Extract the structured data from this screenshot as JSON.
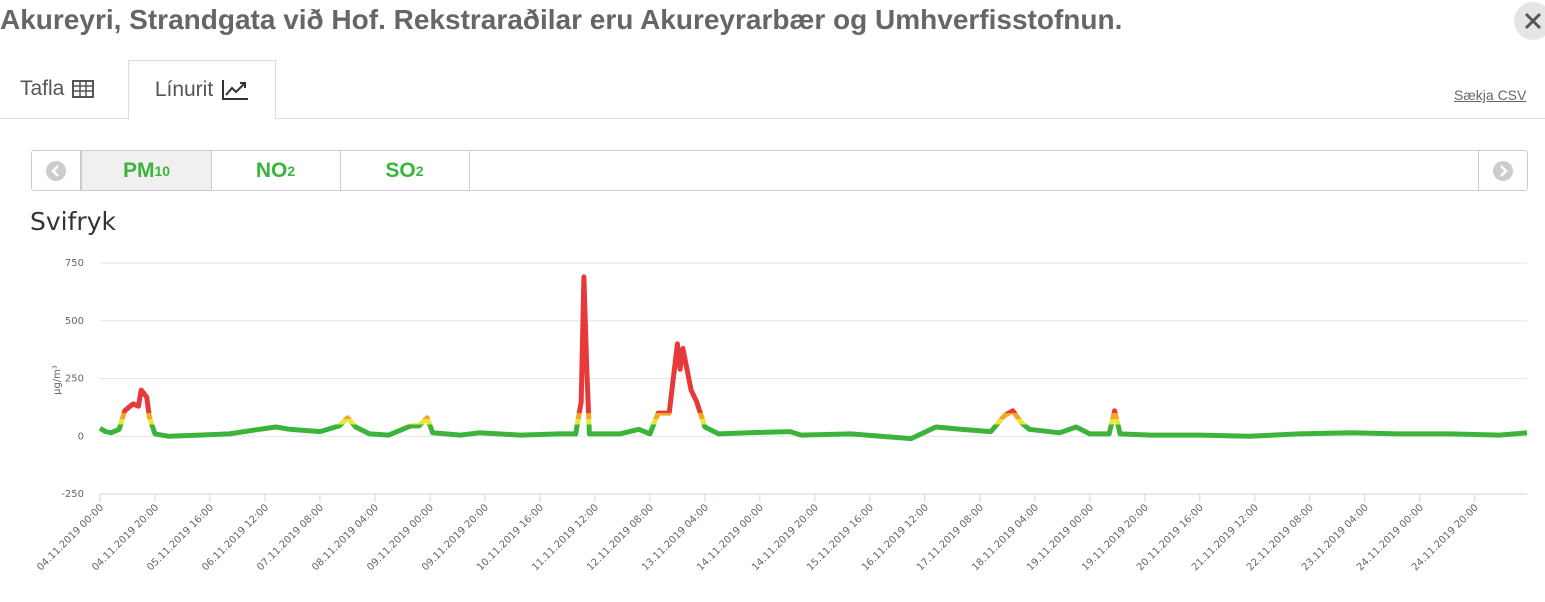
{
  "header": {
    "title": "Akureyri, Strandgata við Hof. Rekstraraðilar eru Akureyrarbær og Umhverfisstofnun."
  },
  "tabs": [
    "Tafla",
    "Línurit"
  ],
  "download": "Sækja CSV",
  "pollutants": [
    {
      "base": "PM",
      "sub": "10"
    },
    {
      "base": "NO",
      "sub": "2"
    },
    {
      "base": "SO",
      "sub": "2"
    }
  ],
  "chart_data": {
    "type": "line",
    "title": "Svifryk",
    "y_label": "μg/m³",
    "x": [
      "04.11.2019 00:00",
      "04.11.2019 02:00",
      "04.11.2019 04:00",
      "04.11.2019 07:00",
      "04.11.2019 09:00",
      "04.11.2019 12:00",
      "04.11.2019 14:00",
      "04.11.2019 15:00",
      "04.11.2019 17:00",
      "04.11.2019 18:00",
      "04.11.2019 20:00",
      "05.11.2019 01:00",
      "05.11.2019 12:00",
      "05.11.2019 23:00",
      "06.11.2019 10:00",
      "06.11.2019 16:00",
      "06.11.2019 21:00",
      "07.11.2019 08:00",
      "07.11.2019 15:00",
      "07.11.2019 18:00",
      "07.11.2019 21:00",
      "08.11.2019 02:00",
      "08.11.2019 09:00",
      "08.11.2019 17:00",
      "08.11.2019 20:00",
      "08.11.2019 23:00",
      "09.11.2019 01:00",
      "09.11.2019 11:00",
      "09.11.2019 18:00",
      "10.11.2019 09:00",
      "10.11.2019 23:00",
      "11.11.2019 05:00",
      "11.11.2019 07:00",
      "11.11.2019 08:00",
      "11.11.2019 09:00",
      "11.11.2019 10:00",
      "11.11.2019 21:00",
      "12.11.2019 04:00",
      "12.11.2019 08:00",
      "12.11.2019 11:00",
      "12.11.2019 15:00",
      "12.11.2019 18:00",
      "12.11.2019 19:00",
      "12.11.2019 20:00",
      "12.11.2019 23:00",
      "13.11.2019 01:00",
      "13.11.2019 04:00",
      "13.11.2019 09:00",
      "13.11.2019 20:00",
      "14.11.2019 11:00",
      "14.11.2019 15:00",
      "15.11.2019 09:00",
      "15.11.2019 20:00",
      "16.11.2019 07:00",
      "16.11.2019 16:00",
      "17.11.2019 01:00",
      "17.11.2019 12:00",
      "17.11.2019 17:00",
      "17.11.2019 20:00",
      "17.11.2019 23:00",
      "18.11.2019 02:00",
      "18.11.2019 13:00",
      "18.11.2019 19:00",
      "19.11.2019 00:00",
      "19.11.2019 07:00",
      "19.11.2019 09:00",
      "19.11.2019 11:00",
      "19.11.2019 22:00",
      "20.11.2019 16:00",
      "21.11.2019 10:00",
      "22.11.2019 04:00",
      "22.11.2019 23:00",
      "23.11.2019 17:00",
      "24.11.2019 11:00",
      "25.11.2019 05:00",
      "25.11.2019 15:00"
    ],
    "values": [
      35,
      20,
      15,
      30,
      110,
      140,
      130,
      200,
      170,
      80,
      10,
      0,
      5,
      10,
      30,
      40,
      30,
      20,
      45,
      80,
      40,
      10,
      5,
      45,
      45,
      80,
      15,
      5,
      15,
      5,
      10,
      10,
      150,
      690,
      300,
      10,
      10,
      30,
      10,
      100,
      100,
      400,
      290,
      380,
      200,
      150,
      40,
      10,
      15,
      20,
      5,
      10,
      0,
      -10,
      40,
      30,
      20,
      90,
      110,
      60,
      30,
      15,
      40,
      10,
      10,
      110,
      10,
      5,
      5,
      0,
      10,
      15,
      10,
      10,
      5,
      15
    ],
    "zones": [
      {
        "upto": 50,
        "color": "#3cb43c"
      },
      {
        "upto": 75,
        "color": "#e6e63c"
      },
      {
        "upto": 100,
        "color": "#f5a623"
      },
      {
        "color": "#e8393a"
      }
    ],
    "xlim": [
      "04.11.2019 00:00",
      "25.11.2019 15:00"
    ],
    "xticks": [
      "04.11.2019 00:00",
      "04.11.2019 20:00",
      "05.11.2019 16:00",
      "06.11.2019 12:00",
      "07.11.2019 08:00",
      "08.11.2019 04:00",
      "09.11.2019 00:00",
      "09.11.2019 20:00",
      "10.11.2019 16:00",
      "11.11.2019 12:00",
      "12.11.2019 08:00",
      "13.11.2019 04:00",
      "14.11.2019 00:00",
      "14.11.2019 20:00",
      "15.11.2019 16:00",
      "16.11.2019 12:00",
      "17.11.2019 08:00",
      "18.11.2019 04:00",
      "19.11.2019 00:00",
      "19.11.2019 20:00",
      "20.11.2019 16:00",
      "21.11.2019 12:00",
      "22.11.2019 08:00",
      "23.11.2019 04:00",
      "24.11.2019 00:00",
      "24.11.2019 20:00"
    ],
    "ylim": [
      -250,
      750
    ],
    "yticks": [
      -250,
      0,
      250,
      500,
      750
    ],
    "grid": true
  }
}
